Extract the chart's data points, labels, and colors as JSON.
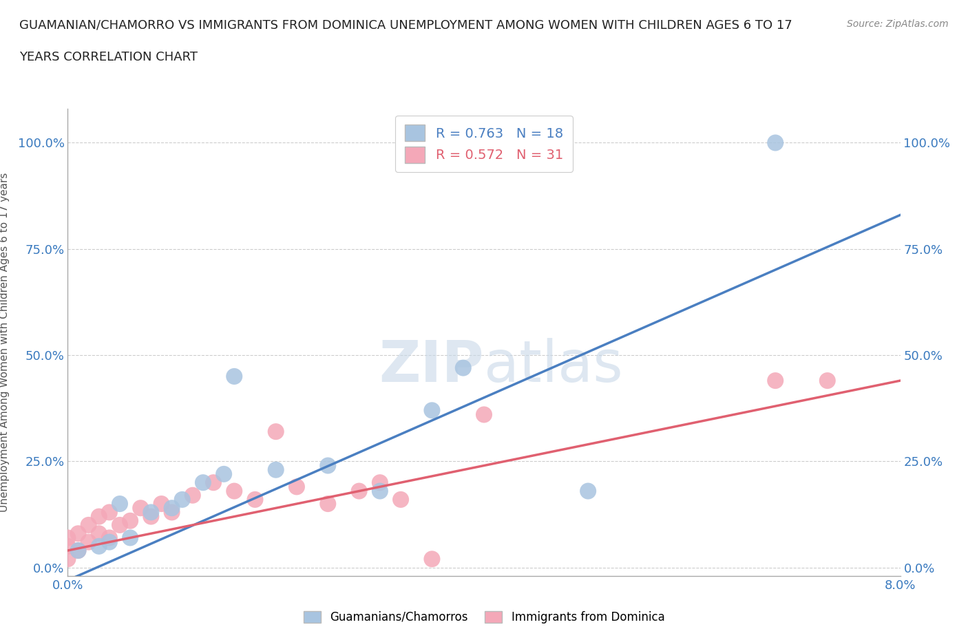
{
  "title_line1": "GUAMANIAN/CHAMORRO VS IMMIGRANTS FROM DOMINICA UNEMPLOYMENT AMONG WOMEN WITH CHILDREN AGES 6 TO 17",
  "title_line2": "YEARS CORRELATION CHART",
  "source": "Source: ZipAtlas.com",
  "ylabel_label": "Unemployment Among Women with Children Ages 6 to 17 years",
  "xlim": [
    0.0,
    0.08
  ],
  "ylim": [
    -0.02,
    1.08
  ],
  "x_ticks": [
    0.0,
    0.01,
    0.02,
    0.03,
    0.04,
    0.05,
    0.06,
    0.07,
    0.08
  ],
  "x_tick_labels": [
    "0.0%",
    "",
    "",
    "",
    "",
    "",
    "",
    "",
    "8.0%"
  ],
  "y_ticks": [
    0.0,
    0.25,
    0.5,
    0.75,
    1.0
  ],
  "y_tick_labels": [
    "0.0%",
    "25.0%",
    "50.0%",
    "75.0%",
    "100.0%"
  ],
  "blue_R": 0.763,
  "blue_N": 18,
  "pink_R": 0.572,
  "pink_N": 31,
  "blue_color": "#a8c4e0",
  "pink_color": "#f4a8b8",
  "blue_line_color": "#4a7fc1",
  "pink_line_color": "#e06070",
  "watermark_color": "#c8d8e8",
  "blue_scatter_x": [
    0.001,
    0.003,
    0.004,
    0.005,
    0.006,
    0.008,
    0.01,
    0.011,
    0.013,
    0.015,
    0.016,
    0.02,
    0.025,
    0.03,
    0.035,
    0.038,
    0.05,
    0.068
  ],
  "blue_scatter_y": [
    0.04,
    0.05,
    0.06,
    0.15,
    0.07,
    0.13,
    0.14,
    0.16,
    0.2,
    0.22,
    0.45,
    0.23,
    0.24,
    0.18,
    0.37,
    0.47,
    0.18,
    1.0
  ],
  "pink_scatter_x": [
    0.0,
    0.0,
    0.0,
    0.001,
    0.001,
    0.002,
    0.002,
    0.003,
    0.003,
    0.004,
    0.004,
    0.005,
    0.006,
    0.007,
    0.008,
    0.009,
    0.01,
    0.012,
    0.014,
    0.016,
    0.018,
    0.02,
    0.022,
    0.025,
    0.028,
    0.03,
    0.032,
    0.035,
    0.04,
    0.068,
    0.073
  ],
  "pink_scatter_y": [
    0.02,
    0.05,
    0.07,
    0.04,
    0.08,
    0.06,
    0.1,
    0.08,
    0.12,
    0.07,
    0.13,
    0.1,
    0.11,
    0.14,
    0.12,
    0.15,
    0.13,
    0.17,
    0.2,
    0.18,
    0.16,
    0.32,
    0.19,
    0.15,
    0.18,
    0.2,
    0.16,
    0.02,
    0.36,
    0.44,
    0.44
  ],
  "blue_line_x": [
    0.0,
    0.08
  ],
  "blue_line_y": [
    -0.03,
    0.83
  ],
  "pink_line_x": [
    0.0,
    0.08
  ],
  "pink_line_y": [
    0.04,
    0.44
  ],
  "grid_color": "#cccccc",
  "grid_linestyle": "--",
  "background_color": "#ffffff"
}
